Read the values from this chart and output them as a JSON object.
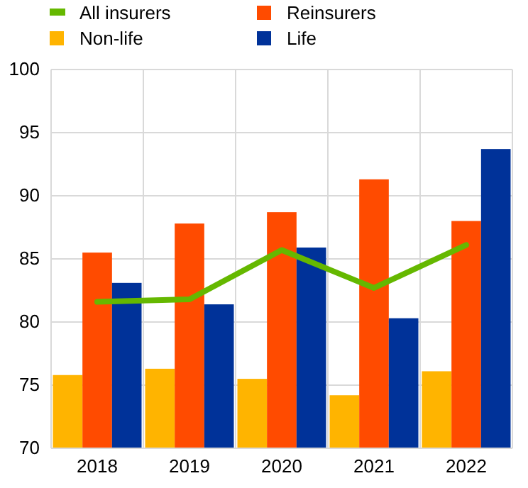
{
  "chart_data": {
    "type": "bar",
    "categories": [
      "2018",
      "2019",
      "2020",
      "2021",
      "2022"
    ],
    "series": [
      {
        "name": "All insurers",
        "type": "line",
        "color": "#65b800",
        "values": [
          81.6,
          81.8,
          85.7,
          82.7,
          86.1
        ]
      },
      {
        "name": "Non-life",
        "color": "#ffb400",
        "values": [
          75.8,
          76.3,
          75.5,
          74.2,
          76.1
        ]
      },
      {
        "name": "Reinsurers",
        "color": "#ff4b00",
        "values": [
          85.5,
          87.8,
          88.7,
          91.3,
          88.0
        ]
      },
      {
        "name": "Life",
        "color": "#003299",
        "values": [
          83.1,
          81.4,
          85.9,
          80.3,
          93.7
        ]
      }
    ],
    "ylim": [
      70,
      100
    ],
    "yticks": [
      70,
      75,
      80,
      85,
      90,
      95,
      100
    ],
    "grid": true,
    "legend": "top"
  }
}
